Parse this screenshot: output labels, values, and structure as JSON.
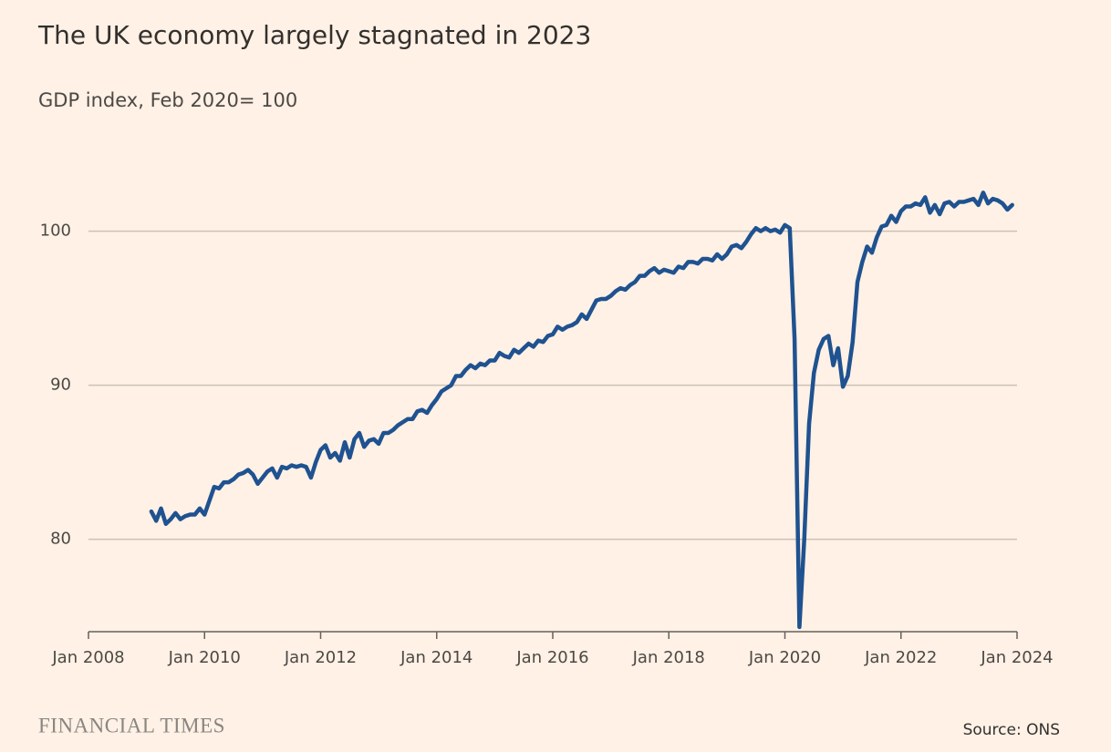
{
  "chart_data": {
    "type": "line",
    "title": "The UK economy largely stagnated in 2023",
    "subtitle": "GDP index, Feb 2020= 100",
    "source": "Source: ONS",
    "brand": "FINANCIAL TIMES",
    "xlim": [
      "2008-01",
      "2024-01"
    ],
    "xticks": [
      {
        "value": "2008-01",
        "label": "Jan 2008"
      },
      {
        "value": "2010-01",
        "label": "Jan 2010"
      },
      {
        "value": "2012-01",
        "label": "Jan 2012"
      },
      {
        "value": "2014-01",
        "label": "Jan 2014"
      },
      {
        "value": "2016-01",
        "label": "Jan 2016"
      },
      {
        "value": "2018-01",
        "label": "Jan 2018"
      },
      {
        "value": "2020-01",
        "label": "Jan 2020"
      },
      {
        "value": "2022-01",
        "label": "Jan 2022"
      },
      {
        "value": "2024-01",
        "label": "Jan 2024"
      }
    ],
    "ylim": [
      74,
      104
    ],
    "yticks": [
      80,
      90,
      100
    ],
    "grid": true,
    "x": [
      "2009-02",
      "2009-03",
      "2009-04",
      "2009-05",
      "2009-06",
      "2009-07",
      "2009-08",
      "2009-09",
      "2009-10",
      "2009-11",
      "2009-12",
      "2010-01",
      "2010-02",
      "2010-03",
      "2010-04",
      "2010-05",
      "2010-06",
      "2010-07",
      "2010-08",
      "2010-09",
      "2010-10",
      "2010-11",
      "2010-12",
      "2011-01",
      "2011-02",
      "2011-03",
      "2011-04",
      "2011-05",
      "2011-06",
      "2011-07",
      "2011-08",
      "2011-09",
      "2011-10",
      "2011-11",
      "2011-12",
      "2012-01",
      "2012-02",
      "2012-03",
      "2012-04",
      "2012-05",
      "2012-06",
      "2012-07",
      "2012-08",
      "2012-09",
      "2012-10",
      "2012-11",
      "2012-12",
      "2013-01",
      "2013-02",
      "2013-03",
      "2013-04",
      "2013-05",
      "2013-06",
      "2013-07",
      "2013-08",
      "2013-09",
      "2013-10",
      "2013-11",
      "2013-12",
      "2014-01",
      "2014-02",
      "2014-03",
      "2014-04",
      "2014-05",
      "2014-06",
      "2014-07",
      "2014-08",
      "2014-09",
      "2014-10",
      "2014-11",
      "2014-12",
      "2015-01",
      "2015-02",
      "2015-03",
      "2015-04",
      "2015-05",
      "2015-06",
      "2015-07",
      "2015-08",
      "2015-09",
      "2015-10",
      "2015-11",
      "2015-12",
      "2016-01",
      "2016-02",
      "2016-03",
      "2016-04",
      "2016-05",
      "2016-06",
      "2016-07",
      "2016-08",
      "2016-09",
      "2016-10",
      "2016-11",
      "2016-12",
      "2017-01",
      "2017-02",
      "2017-03",
      "2017-04",
      "2017-05",
      "2017-06",
      "2017-07",
      "2017-08",
      "2017-09",
      "2017-10",
      "2017-11",
      "2017-12",
      "2018-01",
      "2018-02",
      "2018-03",
      "2018-04",
      "2018-05",
      "2018-06",
      "2018-07",
      "2018-08",
      "2018-09",
      "2018-10",
      "2018-11",
      "2018-12",
      "2019-01",
      "2019-02",
      "2019-03",
      "2019-04",
      "2019-05",
      "2019-06",
      "2019-07",
      "2019-08",
      "2019-09",
      "2019-10",
      "2019-11",
      "2019-12",
      "2020-01",
      "2020-02",
      "2020-03",
      "2020-04",
      "2020-05",
      "2020-06",
      "2020-07",
      "2020-08",
      "2020-09",
      "2020-10",
      "2020-11",
      "2020-12",
      "2021-01",
      "2021-02",
      "2021-03",
      "2021-04",
      "2021-05",
      "2021-06",
      "2021-07",
      "2021-08",
      "2021-09",
      "2021-10",
      "2021-11",
      "2021-12",
      "2022-01",
      "2022-02",
      "2022-03",
      "2022-04",
      "2022-05",
      "2022-06",
      "2022-07",
      "2022-08",
      "2022-09",
      "2022-10",
      "2022-11",
      "2022-12",
      "2023-01",
      "2023-02",
      "2023-03",
      "2023-04",
      "2023-05",
      "2023-06",
      "2023-07",
      "2023-08",
      "2023-09",
      "2023-10",
      "2023-11",
      "2023-12"
    ],
    "series": [
      {
        "name": "GDP index",
        "color": "#1f5290",
        "values": [
          81.8,
          81.2,
          82.0,
          81.0,
          81.3,
          81.7,
          81.3,
          81.5,
          81.6,
          81.6,
          82.0,
          81.6,
          82.5,
          83.4,
          83.3,
          83.7,
          83.7,
          83.9,
          84.2,
          84.3,
          84.5,
          84.2,
          83.6,
          84.0,
          84.4,
          84.6,
          84.0,
          84.7,
          84.6,
          84.8,
          84.7,
          84.8,
          84.7,
          84.0,
          85.0,
          85.8,
          86.1,
          85.3,
          85.6,
          85.1,
          86.3,
          85.3,
          86.5,
          86.9,
          86.0,
          86.4,
          86.5,
          86.2,
          86.9,
          86.9,
          87.1,
          87.4,
          87.6,
          87.8,
          87.8,
          88.3,
          88.4,
          88.2,
          88.7,
          89.1,
          89.6,
          89.8,
          90.0,
          90.6,
          90.6,
          91.0,
          91.3,
          91.1,
          91.4,
          91.3,
          91.6,
          91.6,
          92.1,
          91.9,
          91.8,
          92.3,
          92.1,
          92.4,
          92.7,
          92.5,
          92.9,
          92.8,
          93.2,
          93.3,
          93.8,
          93.6,
          93.8,
          93.9,
          94.1,
          94.6,
          94.3,
          94.9,
          95.5,
          95.6,
          95.6,
          95.8,
          96.1,
          96.3,
          96.2,
          96.5,
          96.7,
          97.1,
          97.1,
          97.4,
          97.6,
          97.3,
          97.5,
          97.4,
          97.3,
          97.7,
          97.6,
          98.0,
          98.0,
          97.9,
          98.2,
          98.2,
          98.1,
          98.5,
          98.2,
          98.5,
          99.0,
          99.1,
          98.9,
          99.3,
          99.8,
          100.2,
          100.0,
          100.2,
          100.0,
          100.1,
          99.9,
          100.4,
          100.2,
          93.0,
          74.3,
          80.0,
          87.5,
          90.8,
          92.3,
          93.0,
          93.2,
          91.3,
          92.4,
          89.9,
          90.6,
          92.8,
          96.7,
          98.0,
          99.0,
          98.6,
          99.6,
          100.3,
          100.4,
          101.0,
          100.6,
          101.3,
          101.6,
          101.6,
          101.8,
          101.7,
          102.2,
          101.2,
          101.7,
          101.1,
          101.8,
          101.9,
          101.6,
          101.9,
          101.9,
          102.0,
          102.1,
          101.7,
          102.5,
          101.8,
          102.1,
          102.0,
          101.8,
          101.4,
          101.7
        ]
      }
    ]
  }
}
